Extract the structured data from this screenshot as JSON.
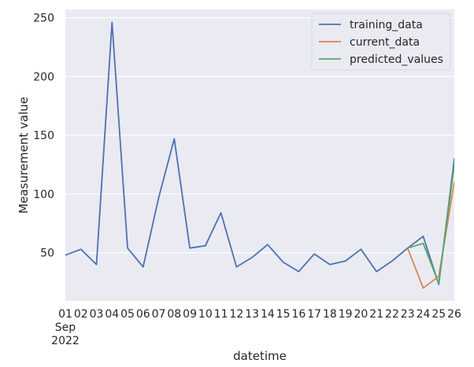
{
  "chart_data": {
    "type": "line",
    "xlabel": "datetime",
    "ylabel": "Measurement value",
    "x_tick_labels": [
      "01",
      "02",
      "03",
      "04",
      "05",
      "06",
      "07",
      "08",
      "09",
      "10",
      "11",
      "12",
      "13",
      "14",
      "15",
      "16",
      "17",
      "18",
      "19",
      "20",
      "21",
      "22",
      "23",
      "24",
      "25",
      "26"
    ],
    "x_tick_sub": [
      "Sep",
      "2022"
    ],
    "y_ticks": [
      50,
      100,
      150,
      200,
      250
    ],
    "ylim": [
      9,
      257
    ],
    "xlim": [
      "2022-09-01",
      "2022-09-26"
    ],
    "grid": true,
    "legend_position": "upper right",
    "series": [
      {
        "name": "training_data",
        "color": "#4c72b0",
        "points": [
          [
            "2022-09-01",
            48
          ],
          [
            "2022-09-02",
            53
          ],
          [
            "2022-09-03",
            40
          ],
          [
            "2022-09-04",
            246
          ],
          [
            "2022-09-05",
            54
          ],
          [
            "2022-09-06",
            38
          ],
          [
            "2022-09-07",
            97
          ],
          [
            "2022-09-08",
            147
          ],
          [
            "2022-09-09",
            54
          ],
          [
            "2022-09-10",
            56
          ],
          [
            "2022-09-11",
            84
          ],
          [
            "2022-09-12",
            38
          ],
          [
            "2022-09-13",
            46
          ],
          [
            "2022-09-14",
            57
          ],
          [
            "2022-09-15",
            42
          ],
          [
            "2022-09-16",
            34
          ],
          [
            "2022-09-17",
            49
          ],
          [
            "2022-09-18",
            40
          ],
          [
            "2022-09-19",
            43
          ],
          [
            "2022-09-20",
            53
          ],
          [
            "2022-09-21",
            34
          ],
          [
            "2022-09-22",
            43
          ],
          [
            "2022-09-23",
            54
          ],
          [
            "2022-09-24",
            64
          ],
          [
            "2022-09-25",
            23
          ],
          [
            "2022-09-26",
            130
          ]
        ]
      },
      {
        "name": "current_data",
        "color": "#dd8452",
        "points": [
          [
            "2022-09-23",
            54
          ],
          [
            "2022-09-24",
            20
          ],
          [
            "2022-09-25",
            30
          ],
          [
            "2022-09-26",
            110
          ]
        ]
      },
      {
        "name": "predicted_values",
        "color": "#55a868",
        "points": [
          [
            "2022-09-23",
            54
          ],
          [
            "2022-09-24",
            58
          ],
          [
            "2022-09-25",
            24
          ],
          [
            "2022-09-26",
            125
          ]
        ]
      }
    ]
  }
}
